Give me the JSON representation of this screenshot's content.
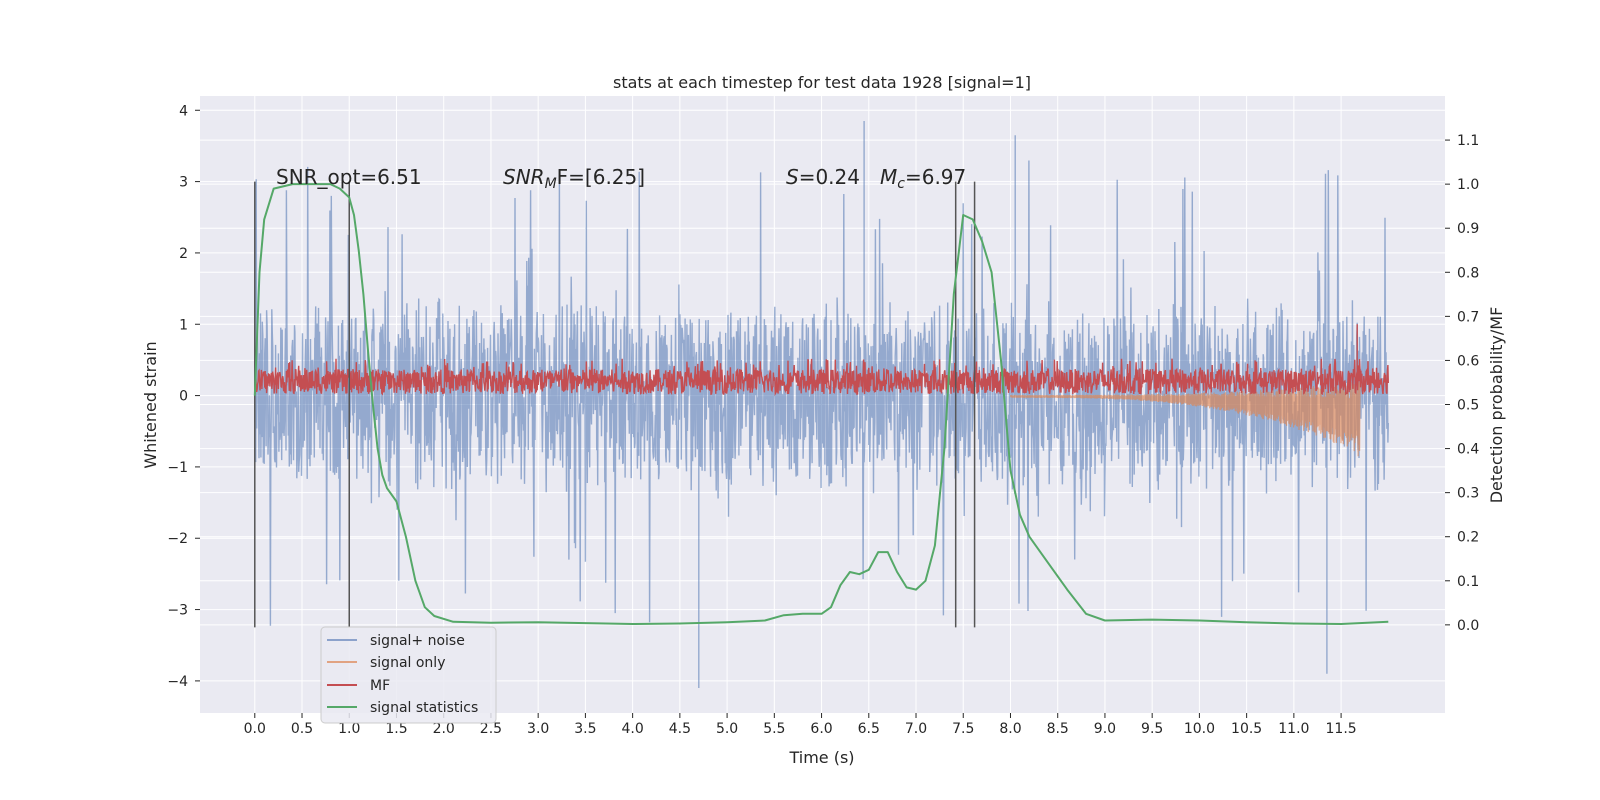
{
  "chart_data": {
    "type": "line",
    "title": "stats at each timestep for test data 1928 [signal=1]",
    "xlabel": "Time (s)",
    "ylabel": "Whitened strain",
    "y2label": "Detection probability/MF",
    "xlim": [
      -0.58,
      12.6
    ],
    "ylim": [
      -4.45,
      4.2
    ],
    "y2lim": [
      -0.2,
      1.2
    ],
    "xticks": [
      "0.0",
      "0.5",
      "1.0",
      "1.5",
      "2.0",
      "2.5",
      "3.0",
      "3.5",
      "4.0",
      "4.5",
      "5.0",
      "5.5",
      "6.0",
      "6.5",
      "7.0",
      "7.5",
      "8.0",
      "8.5",
      "9.0",
      "9.5",
      "10.0",
      "10.5",
      "11.0",
      "11.5"
    ],
    "yticks": [
      "−4",
      "−3",
      "−2",
      "−1",
      "0",
      "1",
      "2",
      "3",
      "4"
    ],
    "y2ticks": [
      "0.0",
      "0.1",
      "0.2",
      "0.3",
      "0.4",
      "0.5",
      "0.6",
      "0.7",
      "0.8",
      "0.9",
      "1.0",
      "1.1"
    ],
    "grid": true,
    "legend_position": "lower-left",
    "annotations": {
      "snr_opt": "SNR_opt=6.51",
      "snr_mf_a": "SNR",
      "snr_mf_sub": "M",
      "snr_mf_b": "F=[6.25]",
      "s_sym": "S",
      "s_val": "=0.24",
      "mc_sym": "M",
      "mc_sub": "c",
      "mc_val": "=6.97"
    },
    "vertical_lines_x": [
      0.0,
      1.0,
      7.42,
      7.62
    ],
    "vertical_lines_range": [
      -3.25,
      3.0
    ],
    "series": [
      {
        "name": "signal+ noise",
        "color": "#4c72b0",
        "x_range": [
          0,
          12.0
        ],
        "band": [
          -1.4,
          1.4
        ],
        "spike_range": [
          -3.2,
          3.3
        ],
        "extremes": [
          [
            6.45,
            3.85
          ],
          [
            8.05,
            3.65
          ],
          [
            4.7,
            -4.1
          ],
          [
            11.35,
            -3.9
          ]
        ]
      },
      {
        "name": "signal only",
        "color": "#dd8452",
        "x_range": [
          8.0,
          11.7
        ],
        "envelope_end": [
          -0.85,
          0.22
        ]
      },
      {
        "name": "MF",
        "color": "#c44e52",
        "x_range": [
          0,
          12.0
        ],
        "band": [
          0.0,
          0.5
        ],
        "spike": [
          11.67,
          1.0
        ]
      },
      {
        "name": "signal statistics",
        "color": "#55a868",
        "points": [
          [
            0.0,
            0.52
          ],
          [
            0.05,
            0.8
          ],
          [
            0.1,
            0.92
          ],
          [
            0.2,
            0.99
          ],
          [
            0.4,
            1.0
          ],
          [
            0.6,
            1.0
          ],
          [
            0.8,
            1.0
          ],
          [
            0.9,
            0.99
          ],
          [
            1.0,
            0.97
          ],
          [
            1.05,
            0.93
          ],
          [
            1.1,
            0.85
          ],
          [
            1.15,
            0.75
          ],
          [
            1.2,
            0.62
          ],
          [
            1.25,
            0.5
          ],
          [
            1.3,
            0.4
          ],
          [
            1.35,
            0.34
          ],
          [
            1.4,
            0.31
          ],
          [
            1.5,
            0.28
          ],
          [
            1.6,
            0.2
          ],
          [
            1.7,
            0.1
          ],
          [
            1.8,
            0.04
          ],
          [
            1.9,
            0.02
          ],
          [
            2.1,
            0.007
          ],
          [
            2.5,
            0.005
          ],
          [
            3.0,
            0.006
          ],
          [
            3.5,
            0.004
          ],
          [
            4.0,
            0.002
          ],
          [
            4.5,
            0.003
          ],
          [
            5.0,
            0.006
          ],
          [
            5.4,
            0.01
          ],
          [
            5.6,
            0.022
          ],
          [
            5.8,
            0.025
          ],
          [
            6.0,
            0.025
          ],
          [
            6.1,
            0.04
          ],
          [
            6.2,
            0.09
          ],
          [
            6.3,
            0.12
          ],
          [
            6.4,
            0.115
          ],
          [
            6.5,
            0.125
          ],
          [
            6.6,
            0.165
          ],
          [
            6.7,
            0.165
          ],
          [
            6.8,
            0.12
          ],
          [
            6.9,
            0.085
          ],
          [
            7.0,
            0.08
          ],
          [
            7.1,
            0.1
          ],
          [
            7.2,
            0.18
          ],
          [
            7.3,
            0.4
          ],
          [
            7.4,
            0.75
          ],
          [
            7.5,
            0.93
          ],
          [
            7.6,
            0.92
          ],
          [
            7.7,
            0.87
          ],
          [
            7.8,
            0.8
          ],
          [
            7.9,
            0.6
          ],
          [
            8.0,
            0.35
          ],
          [
            8.1,
            0.25
          ],
          [
            8.2,
            0.2
          ],
          [
            8.4,
            0.14
          ],
          [
            8.6,
            0.08
          ],
          [
            8.8,
            0.025
          ],
          [
            9.0,
            0.01
          ],
          [
            9.5,
            0.012
          ],
          [
            10.0,
            0.01
          ],
          [
            10.5,
            0.006
          ],
          [
            11.0,
            0.003
          ],
          [
            11.5,
            0.002
          ],
          [
            12.0,
            0.007
          ]
        ]
      }
    ]
  }
}
